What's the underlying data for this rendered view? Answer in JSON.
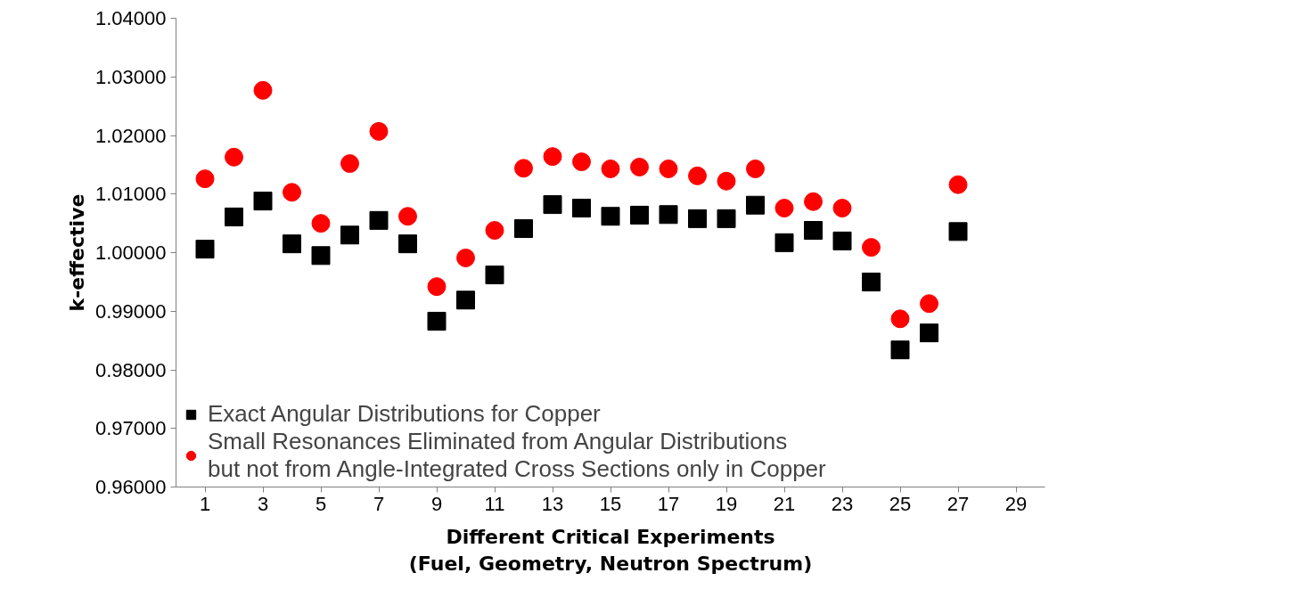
{
  "chart_data": {
    "type": "scatter",
    "xlabel": "Different Critical Experiments\n(Fuel, Geometry, Neutron Spectrum)",
    "ylabel": "k-effective",
    "x": [
      1,
      2,
      3,
      4,
      5,
      6,
      7,
      8,
      9,
      10,
      11,
      12,
      13,
      14,
      15,
      16,
      17,
      18,
      19,
      20,
      21,
      22,
      23,
      24,
      25,
      26,
      27
    ],
    "series": [
      {
        "name": "Exact Angular Distributions for Copper",
        "color": "#000000",
        "marker": "square",
        "values": [
          1.0006,
          1.0061,
          1.0088,
          1.0015,
          0.9995,
          1.003,
          1.0055,
          1.0015,
          0.9883,
          0.9919,
          0.9962,
          1.0041,
          1.0082,
          1.0076,
          1.0062,
          1.0064,
          1.0065,
          1.0058,
          1.0058,
          1.0081,
          1.0017,
          1.0038,
          1.002,
          0.995,
          0.9834,
          0.9863,
          1.0036
        ]
      },
      {
        "name": "Small Resonances Eliminated from Angular Distributions\nbut not from Angle-Integrated Cross Sections only in Copper",
        "color": "#ff0000",
        "marker": "circle",
        "values": [
          1.0126,
          1.0163,
          1.0277,
          1.0103,
          1.005,
          1.0152,
          1.0207,
          1.0062,
          0.9942,
          0.9991,
          1.0038,
          1.0144,
          1.0164,
          1.0155,
          1.0143,
          1.0146,
          1.0143,
          1.0131,
          1.0122,
          1.0143,
          1.0076,
          1.0087,
          1.0076,
          1.0009,
          0.9887,
          0.9913,
          1.0116
        ]
      }
    ],
    "xlim": [
      0,
      30
    ],
    "xticks": [
      1,
      3,
      5,
      7,
      9,
      11,
      13,
      15,
      17,
      19,
      21,
      23,
      25,
      27,
      29
    ],
    "ylim": [
      0.96,
      1.04
    ],
    "yticks": [
      {
        "value": 0.96,
        "label": "0.96000"
      },
      {
        "value": 0.97,
        "label": "0.97000"
      },
      {
        "value": 0.98,
        "label": "0.98000"
      },
      {
        "value": 0.99,
        "label": "0.99000"
      },
      {
        "value": 1.0,
        "label": "1.00000"
      },
      {
        "value": 1.01,
        "label": "1.01000"
      },
      {
        "value": 1.02,
        "label": "1.02000"
      },
      {
        "value": 1.03,
        "label": "1.03000"
      },
      {
        "value": 1.04,
        "label": "1.04000"
      }
    ],
    "grid": false,
    "legend": "bottom left"
  }
}
